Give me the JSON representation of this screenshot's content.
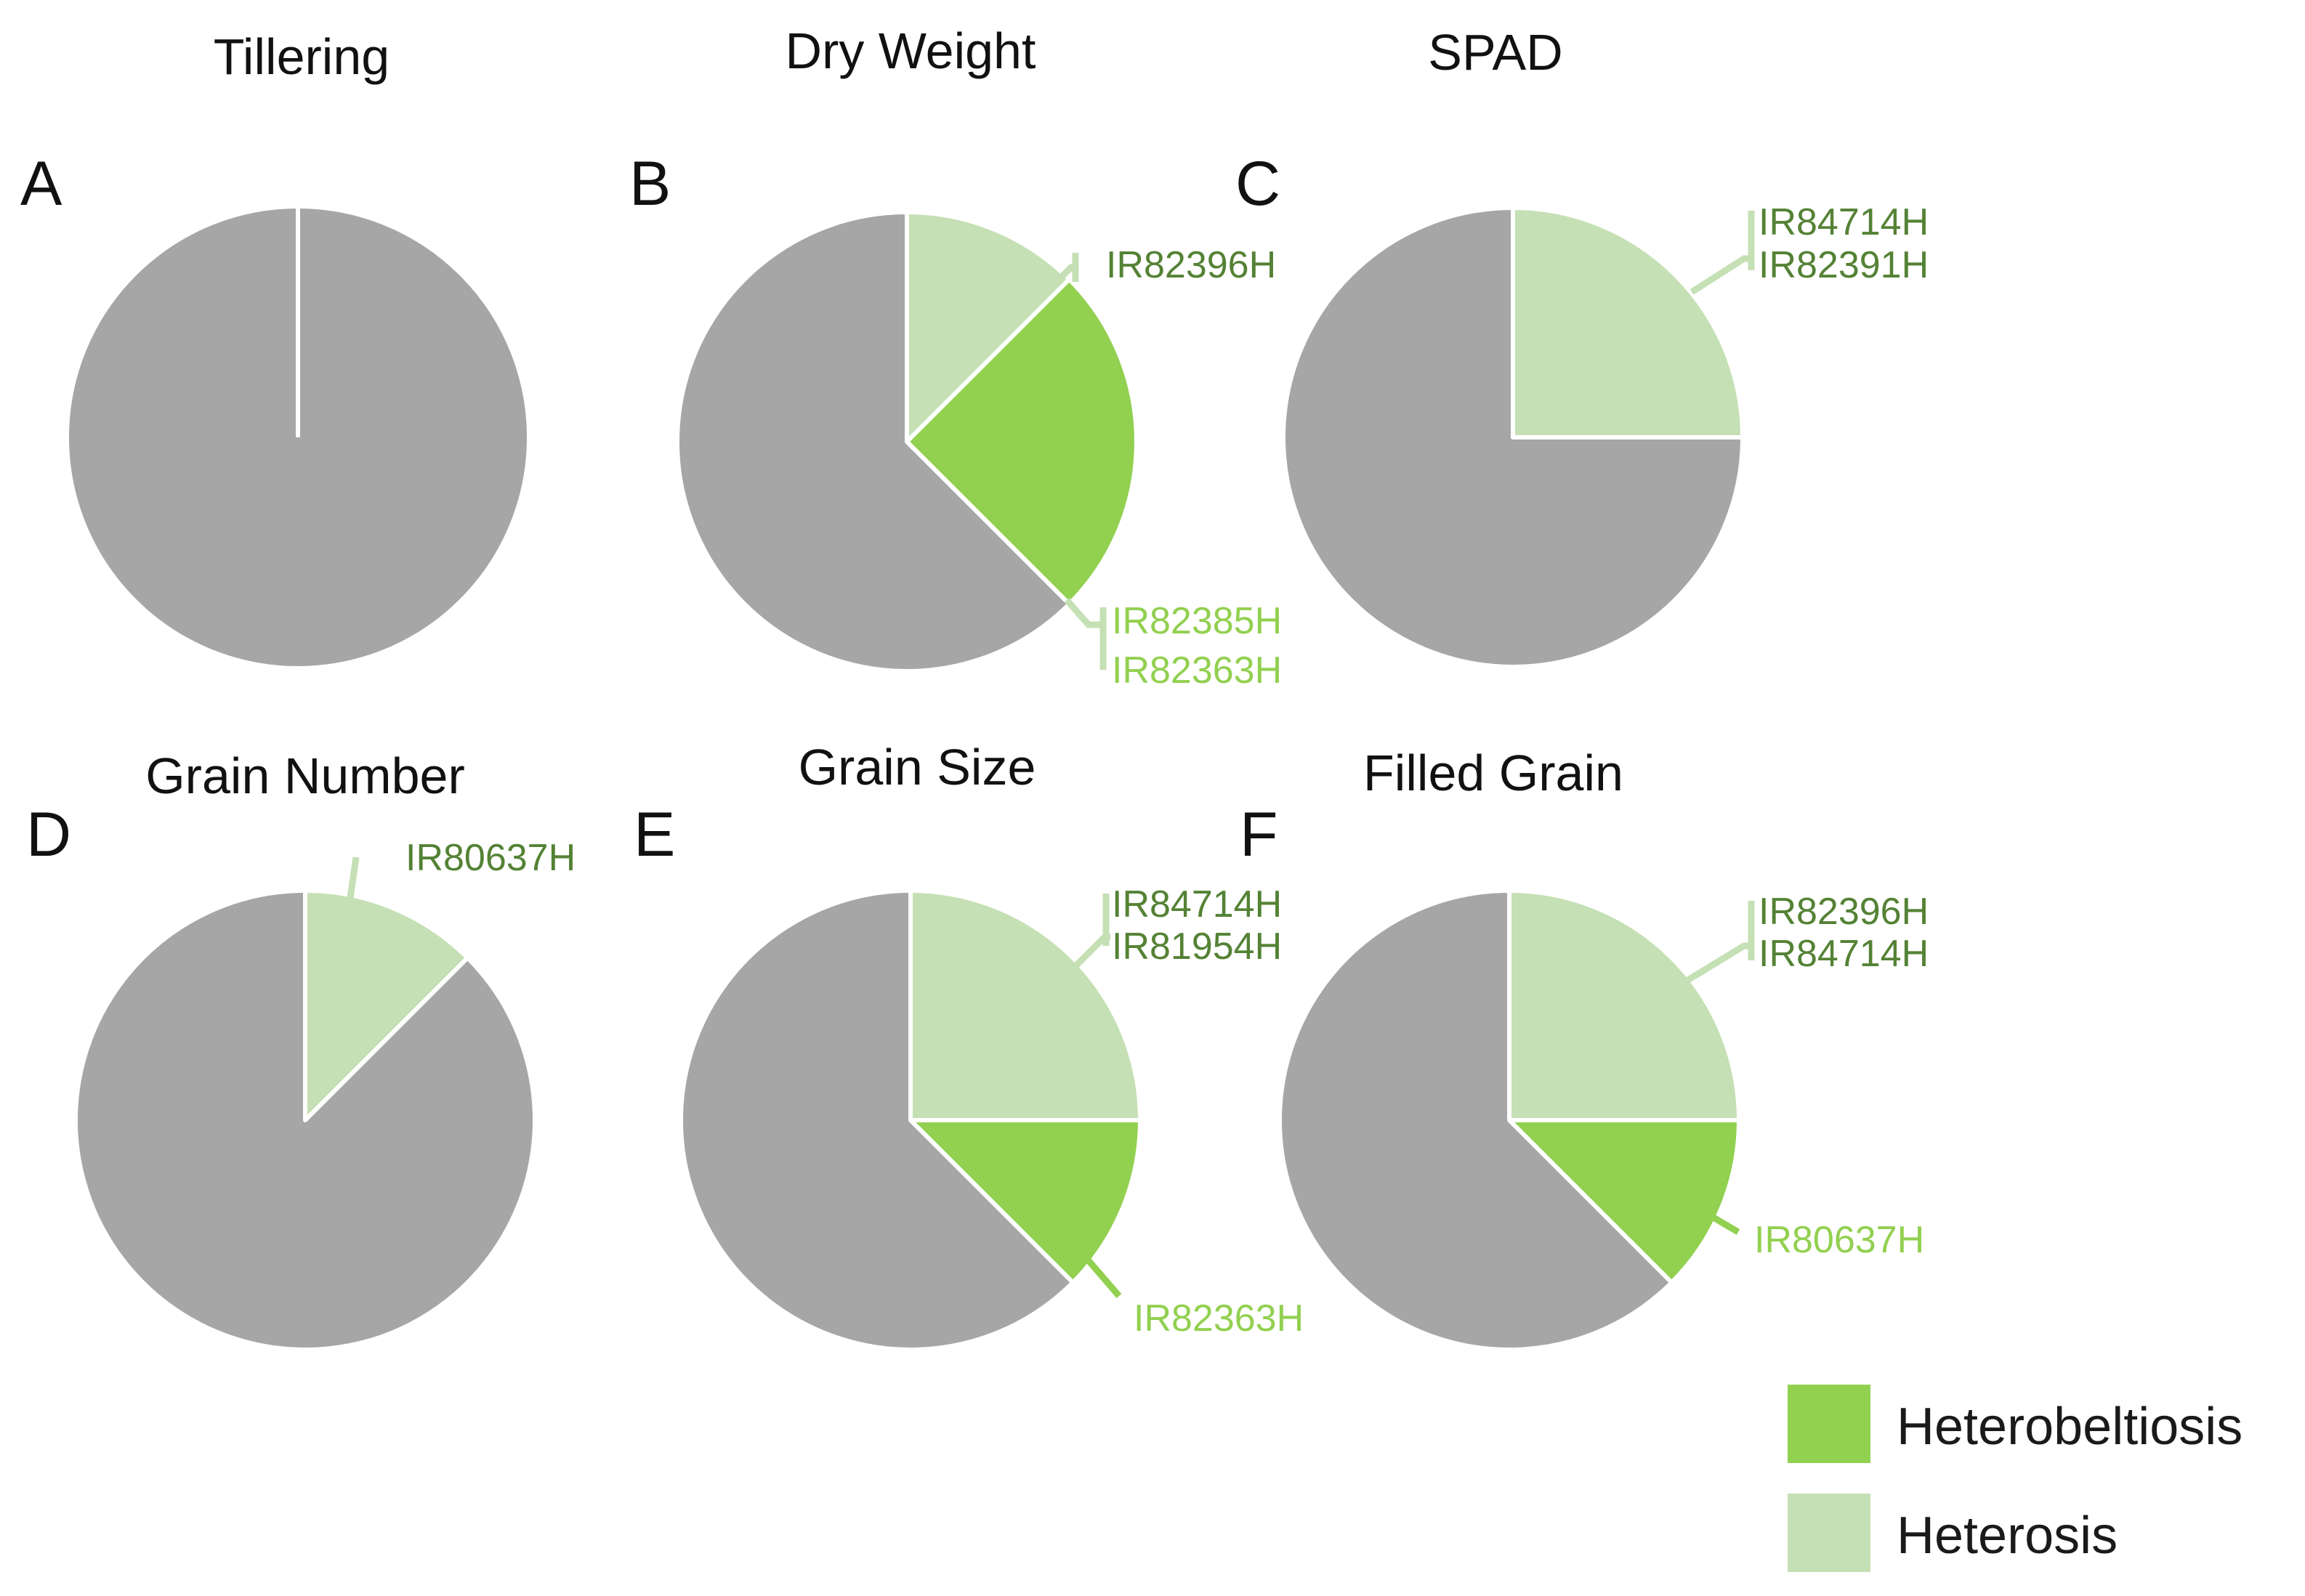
{
  "colors": {
    "other": "#a6a6a6",
    "heterobeltiosis": "#92d050",
    "heterosis": "#c5e0b4",
    "label_dark": "#548235",
    "label_light": "#92d050",
    "slice_border": "#ffffff"
  },
  "legend": {
    "items": [
      {
        "key": "heterobeltiosis",
        "label": "Heterobeltiosis"
      },
      {
        "key": "heterosis",
        "label": "Heterosis"
      }
    ]
  },
  "chart_data": [
    {
      "type": "pie",
      "letter": "A",
      "title": "Tillering",
      "slices": [
        {
          "category": "other",
          "value": 8
        }
      ],
      "callouts": []
    },
    {
      "type": "pie",
      "letter": "B",
      "title": "Dry Weight",
      "slices": [
        {
          "category": "heterosis",
          "value": 1
        },
        {
          "category": "heterobeltiosis",
          "value": 2
        },
        {
          "category": "other",
          "value": 5
        }
      ],
      "callouts": [
        {
          "labels": [
            "IR82396H"
          ],
          "color": "dark"
        },
        {
          "labels": [
            "IR82385H",
            "IR82363H"
          ],
          "color": "light"
        }
      ]
    },
    {
      "type": "pie",
      "letter": "C",
      "title": "SPAD",
      "slices": [
        {
          "category": "heterosis",
          "value": 2
        },
        {
          "category": "other",
          "value": 6
        }
      ],
      "callouts": [
        {
          "labels": [
            "IR84714H",
            "IR82391H"
          ],
          "color": "dark"
        }
      ]
    },
    {
      "type": "pie",
      "letter": "D",
      "title": "Grain Number",
      "slices": [
        {
          "category": "heterosis",
          "value": 1
        },
        {
          "category": "other",
          "value": 7
        }
      ],
      "callouts": [
        {
          "labels": [
            "IR80637H"
          ],
          "color": "dark"
        }
      ]
    },
    {
      "type": "pie",
      "letter": "E",
      "title": "Grain Size",
      "slices": [
        {
          "category": "heterosis",
          "value": 2
        },
        {
          "category": "heterobeltiosis",
          "value": 1
        },
        {
          "category": "other",
          "value": 5
        }
      ],
      "callouts": [
        {
          "labels": [
            "IR84714H",
            "IR81954H"
          ],
          "color": "dark"
        },
        {
          "labels": [
            "IR82363H"
          ],
          "color": "light"
        }
      ]
    },
    {
      "type": "pie",
      "letter": "F",
      "title": "Filled Grain",
      "slices": [
        {
          "category": "heterosis",
          "value": 2
        },
        {
          "category": "heterobeltiosis",
          "value": 1
        },
        {
          "category": "other",
          "value": 5
        }
      ],
      "callouts": [
        {
          "labels": [
            "IR82396H",
            "IR84714H"
          ],
          "color": "dark"
        },
        {
          "labels": [
            "IR80637H"
          ],
          "color": "light"
        }
      ]
    }
  ]
}
